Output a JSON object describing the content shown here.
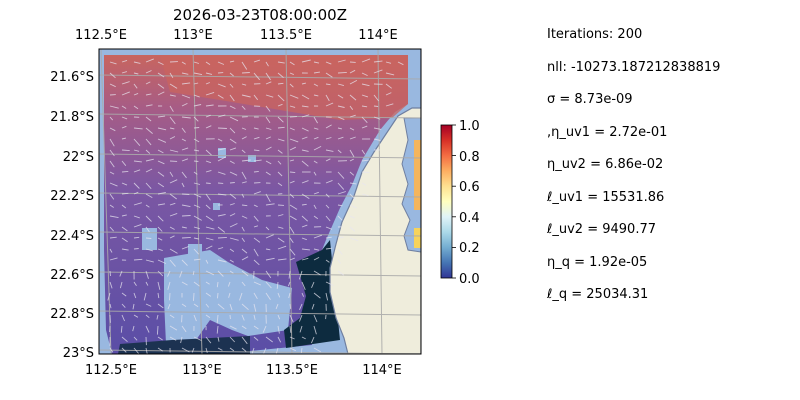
{
  "title": "2026-03-23T08:00:00Z",
  "map": {
    "top_tick_labels": [
      "112.5°E",
      "113°E",
      "113.5°E",
      "114°E"
    ],
    "bottom_tick_labels": [
      "112.5°E",
      "113°E",
      "113.5°E",
      "114°E"
    ],
    "left_tick_labels": [
      "21.6°S",
      "21.8°S",
      "22°S",
      "22.2°S",
      "22.4°S",
      "22.6°S",
      "22.8°S",
      "23°S"
    ],
    "lon_range": [
      112.5,
      114.2
    ],
    "lat_range": [
      -23.0,
      -21.5
    ],
    "gridlines": true,
    "colors": {
      "ocean": "#99b8e0",
      "land": "#efeddc",
      "coast": "#6f7fa0",
      "field_purple": "#7b57a3",
      "field_red": "#c8655f",
      "field_dark": "#0d2b3f"
    }
  },
  "colorbar": {
    "tick_labels": [
      "0.0",
      "0.2",
      "0.4",
      "0.6",
      "0.8",
      "1.0"
    ],
    "range": [
      0.0,
      1.0
    ],
    "colormap": "RdYlBu_r"
  },
  "stats": [
    "Iterations: 200",
    "nll: -10273.187212838819",
    "σ = 8.73e-09",
    ",η_uv1 = 2.72e-01",
    "η_uv2 = 6.86e-02",
    "ℓ_uv1 = 15531.86",
    "ℓ_uv2 = 9490.77",
    "η_q = 1.92e-05",
    "ℓ_q = 25034.31"
  ]
}
